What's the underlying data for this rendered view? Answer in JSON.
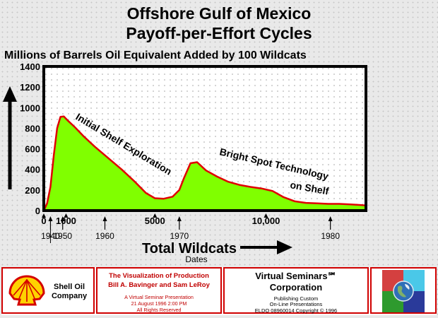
{
  "chart_data": {
    "type": "area",
    "title": "Offshore Gulf of Mexico",
    "title_line2": "Payoff-per-Effort Cycles",
    "subtitle": "Millions of Barrels Oil Equivalent Added by 100 Wildcats",
    "ylim": [
      0,
      1400
    ],
    "yticks": [
      "0",
      "200",
      "400",
      "600",
      "800",
      "1000",
      "1200",
      "1400"
    ],
    "xlim": [
      0,
      14500
    ],
    "xticks": [
      {
        "value": 0,
        "label": "0"
      },
      {
        "value": 1000,
        "label": "1000"
      },
      {
        "value": 5000,
        "label": "5000"
      },
      {
        "value": 10000,
        "label": "10,000"
      }
    ],
    "date_markers": [
      {
        "value": 300,
        "label": "1940"
      },
      {
        "value": 850,
        "label": "1950"
      },
      {
        "value": 2750,
        "label": "1960"
      },
      {
        "value": 6100,
        "label": "1970"
      },
      {
        "value": 12900,
        "label": "1980"
      }
    ],
    "xlabel": "Total Wildcats",
    "dates_label": "Dates",
    "fill_color": "#80ff00",
    "line_color": "#e00000",
    "grid": true,
    "series": [
      {
        "x": [
          0,
          150,
          300,
          450,
          600,
          750,
          900,
          1100,
          1400,
          1800,
          2300,
          2900,
          3500,
          4100,
          4600,
          5000,
          5400,
          5800,
          6100,
          6300,
          6600,
          6900,
          7300,
          7800,
          8300,
          8800,
          9300,
          9800,
          10300,
          10800,
          11300,
          11800,
          12300,
          12800,
          13300,
          13800,
          14200,
          14500
        ],
        "y": [
          0,
          70,
          230,
          540,
          800,
          910,
          915,
          870,
          810,
          720,
          620,
          510,
          400,
          280,
          170,
          120,
          115,
          135,
          200,
          310,
          460,
          470,
          390,
          330,
          280,
          250,
          230,
          215,
          190,
          130,
          90,
          75,
          70,
          65,
          65,
          60,
          55,
          50
        ]
      }
    ],
    "annotations": [
      "Initial Shelf Exploration",
      "Bright Spot Technology",
      "on Shelf"
    ]
  },
  "footer": {
    "shell_line1": "Shell Oil",
    "shell_line2": "Company",
    "prod_title1": "The Visualization of Production",
    "prod_title2": "Bill A. Bavinger and Sam LeRoy",
    "prod_line1": "A Virtual Seminar Presentation",
    "prod_line2": "21 August 1996  2:00 PM",
    "prod_line3": "All Rights Reserved",
    "vs_line1": "Virtual Seminars℠",
    "vs_line2": "Corporation",
    "vs_line3": "Publishing Custom",
    "vs_line4": "On-Line Presentations",
    "vs_line5": "ELDO 08960014 Copyright © 1996"
  },
  "colors": {
    "frame": "#000000",
    "footer_border": "#d00000",
    "shell_red": "#d40000",
    "shell_yellow": "#ffd200"
  }
}
